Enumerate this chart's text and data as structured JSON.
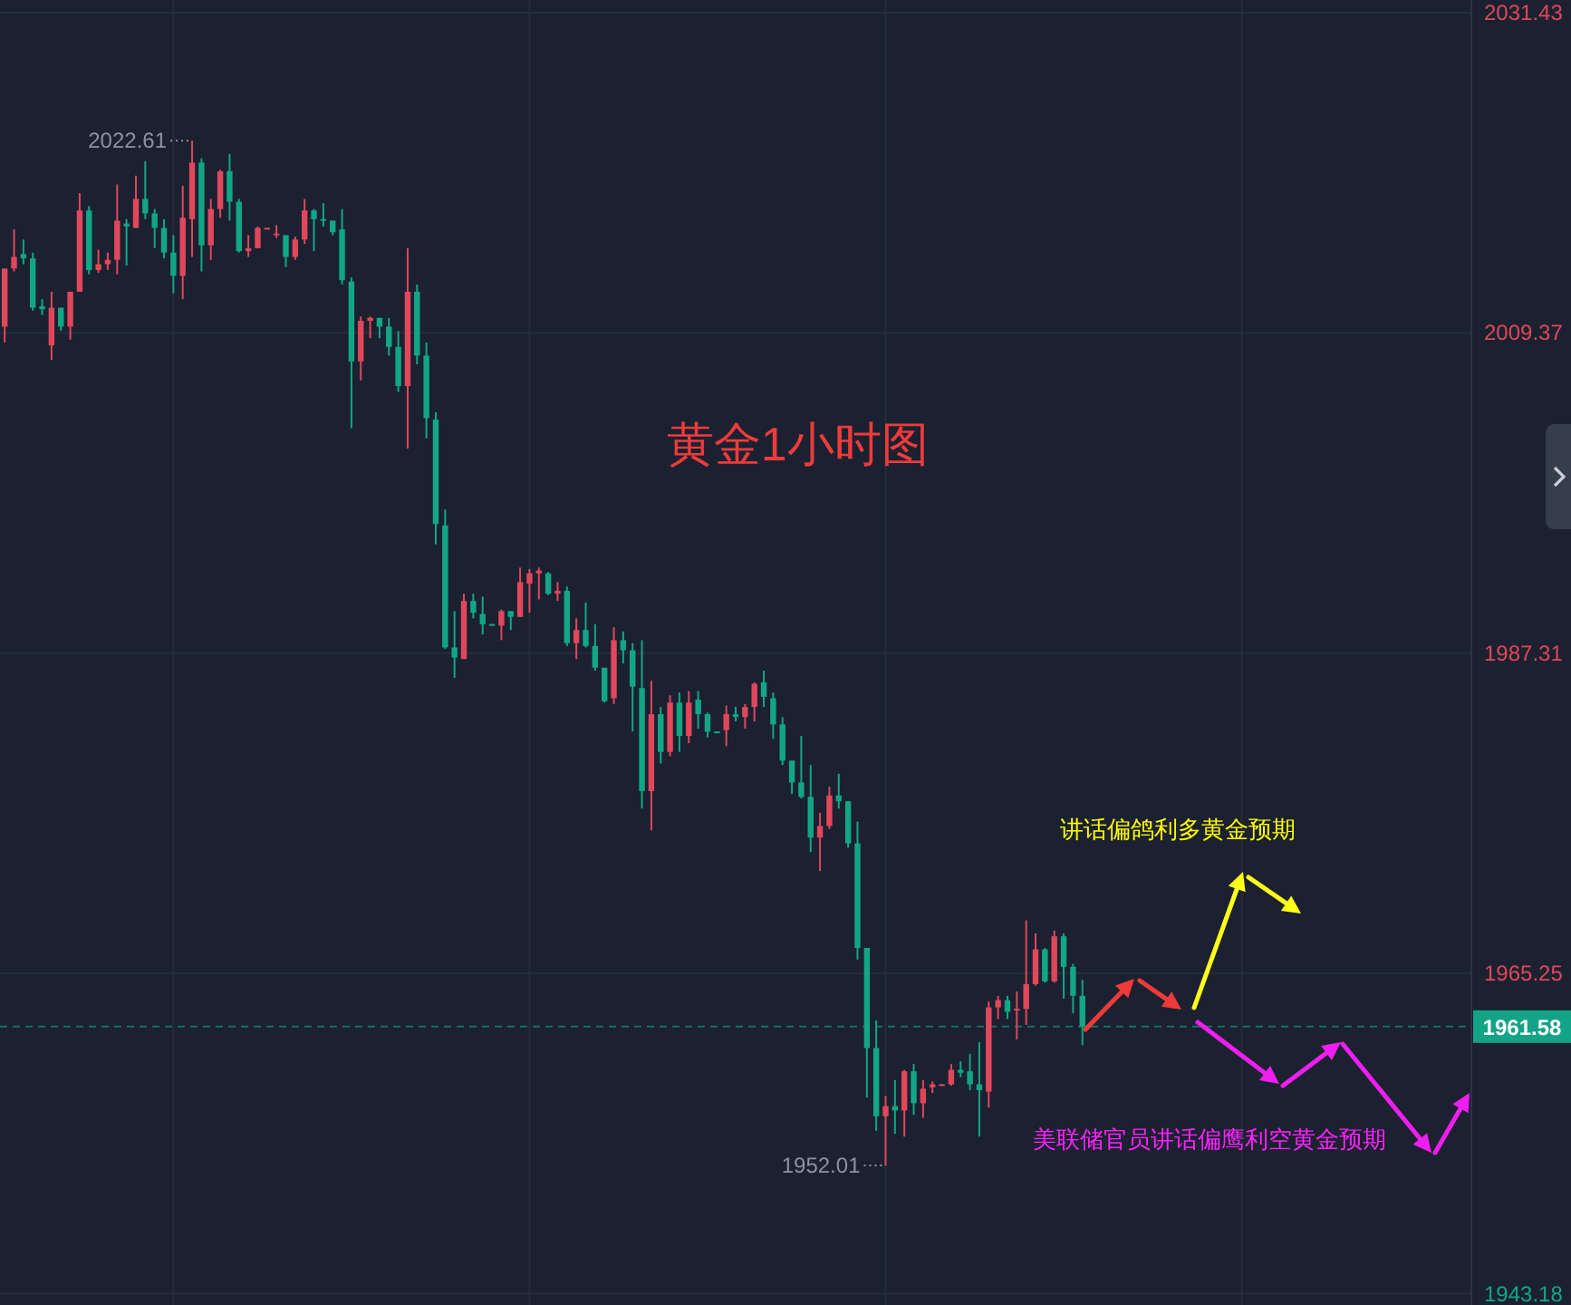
{
  "chart_data": {
    "type": "candlestick",
    "title": "黄金1小时图",
    "categories": [
      null,
      null,
      null,
      null,
      null,
      null,
      null,
      null,
      null,
      null,
      null,
      null,
      null,
      null,
      null,
      null,
      null,
      null,
      null,
      null,
      null,
      null,
      null,
      null,
      null,
      null,
      null,
      null,
      null,
      null,
      null,
      null,
      null,
      null,
      null,
      null,
      null,
      null,
      null,
      null,
      null,
      null,
      null,
      null,
      null,
      null,
      null,
      null,
      null,
      null,
      null,
      null,
      null,
      null,
      null,
      null,
      null,
      null,
      null,
      null,
      null,
      null,
      null,
      null,
      null,
      null,
      null,
      null,
      null,
      null,
      null,
      null,
      null,
      null,
      null,
      null,
      null,
      null,
      null,
      null,
      null,
      null,
      null,
      null,
      null,
      null,
      null,
      null,
      null,
      null,
      null,
      null,
      null,
      null,
      null,
      null,
      null,
      null,
      null,
      null,
      null,
      null,
      null,
      null,
      null,
      null,
      null,
      null,
      null,
      null,
      null,
      null,
      null,
      null,
      null,
      null,
      null,
      null,
      null,
      null,
      null,
      null,
      null,
      null,
      null,
      null,
      null,
      null,
      null,
      null,
      null,
      null,
      null,
      null,
      null,
      null,
      null,
      null,
      null,
      null,
      null,
      null,
      null,
      null,
      null,
      null,
      null,
      null,
      null,
      null,
      null,
      null,
      null,
      null,
      null,
      null,
      null
    ],
    "ohlc": [
      [
        2009.8,
        2013.8,
        2008.7,
        2013.8
      ],
      [
        2013.8,
        2016.5,
        2013.6,
        2014.6
      ],
      [
        2014.8,
        2015.8,
        2014.1,
        2014.5
      ],
      [
        2014.5,
        2014.9,
        2010.9,
        2011.1
      ],
      [
        2011.2,
        2011.7,
        2010.6,
        2011.0
      ],
      [
        2008.5,
        2012.2,
        2007.5,
        2011.1
      ],
      [
        2011.1,
        2011.1,
        2009.5,
        2009.8
      ],
      [
        2009.8,
        2012.2,
        2008.9,
        2012.2
      ],
      [
        2012.2,
        2019.0,
        2012.2,
        2017.8
      ],
      [
        2017.8,
        2018.1,
        2013.4,
        2013.7
      ],
      [
        2013.7,
        2015.1,
        2013.5,
        2014.1
      ],
      [
        2014.1,
        2014.9,
        2013.7,
        2014.4
      ],
      [
        2014.4,
        2019.6,
        2013.4,
        2017.1
      ],
      [
        2016.9,
        2017.2,
        2014.0,
        2016.7
      ],
      [
        2016.6,
        2020.2,
        2016.6,
        2018.6
      ],
      [
        2018.6,
        2021.2,
        2017.2,
        2017.6
      ],
      [
        2017.6,
        2017.9,
        2015.2,
        2016.6
      ],
      [
        2016.6,
        2017.2,
        2014.5,
        2014.9
      ],
      [
        2014.9,
        2016.1,
        2012.1,
        2013.3
      ],
      [
        2013.3,
        2019.5,
        2011.7,
        2017.3
      ],
      [
        2017.2,
        2022.61,
        2014.6,
        2021.1
      ],
      [
        2021.1,
        2021.4,
        2013.6,
        2015.4
      ],
      [
        2015.4,
        2018.6,
        2014.4,
        2017.9
      ],
      [
        2017.9,
        2020.6,
        2017.3,
        2020.5
      ],
      [
        2020.5,
        2021.7,
        2017.1,
        2018.4
      ],
      [
        2018.4,
        2018.6,
        2014.9,
        2015.0
      ],
      [
        2015.0,
        2016.1,
        2014.6,
        2015.2
      ],
      [
        2015.2,
        2016.7,
        2015.2,
        2016.6
      ],
      [
        2016.5,
        2016.6,
        2016.5,
        2016.6
      ],
      [
        2016.1,
        2016.8,
        2015.9,
        2016.2
      ],
      [
        2016.1,
        2016.1,
        2013.9,
        2014.6
      ],
      [
        2014.6,
        2016.0,
        2014.4,
        2015.8
      ],
      [
        2015.8,
        2018.6,
        2015.5,
        2017.8
      ],
      [
        2017.8,
        2017.9,
        2015.0,
        2017.2
      ],
      [
        2017.2,
        2018.3,
        2016.7,
        2017.1
      ],
      [
        2017.1,
        2017.1,
        2016.1,
        2016.3
      ],
      [
        2016.5,
        2017.9,
        2012.7,
        2013.0
      ],
      [
        2012.9,
        2013.2,
        2002.8,
        2007.4
      ],
      [
        2007.4,
        2010.5,
        2006.1,
        2010.2
      ],
      [
        2010.2,
        2010.5,
        2009.0,
        2010.4
      ],
      [
        2010.4,
        2010.4,
        2009.0,
        2009.8
      ],
      [
        2009.8,
        2010.4,
        2007.8,
        2008.4
      ],
      [
        2008.4,
        2009.5,
        2005.3,
        2005.7
      ],
      [
        2005.7,
        2015.2,
        2001.4,
        2012.2
      ],
      [
        2012.2,
        2012.7,
        2007.2,
        2007.8
      ],
      [
        2007.8,
        2008.7,
        2002.1,
        2003.5
      ],
      [
        2003.4,
        2003.9,
        1994.8,
        1996.2
      ],
      [
        1996.1,
        1997.2,
        1987.6,
        1987.7
      ],
      [
        1987.7,
        1990.2,
        1985.6,
        1987.0
      ],
      [
        1986.9,
        1991.4,
        1986.9,
        1990.9
      ],
      [
        1990.9,
        1991.4,
        1989.7,
        1990.1
      ],
      [
        1990.0,
        1991.2,
        1988.6,
        1989.3
      ],
      [
        1989.3,
        1989.3,
        1989.2,
        1989.2
      ],
      [
        1989.2,
        1990.3,
        1988.2,
        1990.2
      ],
      [
        1990.2,
        1990.2,
        1988.9,
        1989.8
      ],
      [
        1989.8,
        1993.2,
        1989.8,
        1992.2
      ],
      [
        1992.1,
        1993.1,
        1990.1,
        1992.8
      ],
      [
        1992.8,
        1993.2,
        1991.0,
        1993.0
      ],
      [
        1992.8,
        1992.9,
        1991.3,
        1991.4
      ],
      [
        1991.4,
        1992.2,
        1990.9,
        1991.6
      ],
      [
        1991.6,
        1991.9,
        1987.8,
        1988.0
      ],
      [
        1988.0,
        1989.7,
        1986.9,
        1988.9
      ],
      [
        1988.9,
        1990.8,
        1987.7,
        1987.8
      ],
      [
        1987.8,
        1989.3,
        1986.1,
        1986.3
      ],
      [
        1986.3,
        1986.3,
        1983.9,
        1984.0
      ],
      [
        1984.2,
        1989.1,
        1983.8,
        1988.2
      ],
      [
        1988.2,
        1988.8,
        1986.6,
        1987.5
      ],
      [
        1987.5,
        1988.0,
        1981.9,
        1985.0
      ],
      [
        1984.9,
        1988.2,
        1976.6,
        1977.8
      ],
      [
        1977.8,
        1985.4,
        1975.1,
        1983.1
      ],
      [
        1983.1,
        1983.6,
        1979.7,
        1980.5
      ],
      [
        1980.5,
        1984.4,
        1980.2,
        1983.9
      ],
      [
        1983.9,
        1984.6,
        1980.5,
        1981.6
      ],
      [
        1981.6,
        1984.7,
        1981.1,
        1983.9
      ],
      [
        1984.1,
        1984.7,
        1982.1,
        1983.1
      ],
      [
        1983.1,
        1983.2,
        1981.5,
        1981.9
      ],
      [
        1981.9,
        1981.9,
        1981.8,
        1981.8
      ],
      [
        1982.0,
        1983.7,
        1980.9,
        1983.1
      ],
      [
        1983.1,
        1983.6,
        1982.6,
        1982.9
      ],
      [
        1982.9,
        1983.8,
        1982.1,
        1983.6
      ],
      [
        1983.6,
        1985.3,
        1982.6,
        1985.2
      ],
      [
        1985.3,
        1986.1,
        1983.6,
        1984.3
      ],
      [
        1984.2,
        1984.6,
        1981.4,
        1982.4
      ],
      [
        1982.4,
        1982.9,
        1979.6,
        1979.9
      ],
      [
        1979.9,
        1979.9,
        1977.6,
        1978.4
      ],
      [
        1978.4,
        1981.6,
        1977.3,
        1977.4
      ],
      [
        1977.4,
        1979.6,
        1973.6,
        1974.6
      ],
      [
        1974.6,
        1976.3,
        1972.3,
        1975.4
      ],
      [
        1975.4,
        1978.1,
        1975.2,
        1977.5
      ],
      [
        1977.5,
        1979.0,
        1976.6,
        1977.1
      ],
      [
        1977.1,
        1977.1,
        1973.9,
        1974.2
      ],
      [
        1974.2,
        1975.7,
        1966.2,
        1967.0
      ],
      [
        1967.0,
        1967.0,
        1956.7,
        1960.1
      ],
      [
        1960.1,
        1962.0,
        1954.4,
        1955.4
      ],
      [
        1955.4,
        1956.8,
        1952.01,
        1956.1
      ],
      [
        1956.1,
        1957.9,
        1954.2,
        1955.8
      ],
      [
        1955.8,
        1958.6,
        1954.0,
        1958.5
      ],
      [
        1958.5,
        1959.0,
        1955.5,
        1956.3
      ],
      [
        1956.3,
        1957.9,
        1955.3,
        1957.3
      ],
      [
        1957.4,
        1957.8,
        1957.0,
        1957.6
      ],
      [
        1957.5,
        1957.6,
        1957.5,
        1957.6
      ],
      [
        1957.6,
        1959.0,
        1957.5,
        1958.6
      ],
      [
        1958.6,
        1959.2,
        1958.1,
        1958.4
      ],
      [
        1958.5,
        1959.7,
        1957.2,
        1957.6
      ],
      [
        1957.6,
        1960.5,
        1954.0,
        1957.2
      ],
      [
        1957.1,
        1963.3,
        1956.0,
        1962.9
      ],
      [
        1962.9,
        1963.7,
        1962.1,
        1963.4
      ],
      [
        1963.4,
        1963.7,
        1962.1,
        1962.6
      ],
      [
        1962.7,
        1964.0,
        1960.7,
        1962.8
      ],
      [
        1962.8,
        1968.9,
        1961.7,
        1964.5
      ],
      [
        1964.5,
        1968.0,
        1964.4,
        1966.9
      ],
      [
        1966.9,
        1967.0,
        1964.6,
        1964.7
      ],
      [
        1964.7,
        1968.2,
        1964.6,
        1967.8
      ],
      [
        1967.8,
        1968.0,
        1963.5,
        1965.7
      ],
      [
        1965.7,
        1965.9,
        1962.5,
        1963.7
      ],
      [
        1963.7,
        1964.8,
        1960.3,
        1961.58
      ],
      null,
      null,
      null,
      null,
      null,
      null,
      null,
      null,
      null,
      null,
      null,
      null,
      null,
      null,
      null,
      null,
      null,
      null,
      null,
      null,
      null,
      null,
      null,
      null,
      null,
      null,
      null,
      null,
      null,
      null,
      null,
      null,
      null,
      null,
      null,
      null,
      null,
      null,
      null,
      null,
      null
    ],
    "colors": [
      "#e0475b",
      "#e0475b",
      "#12a687",
      "#12a687",
      "#12a687",
      "#e0475b",
      "#12a687",
      "#e0475b",
      "#e0475b",
      "#12a687",
      "#e0475b",
      "#e0475b",
      "#e0475b",
      "#12a687",
      "#e0475b",
      "#12a687",
      "#12a687",
      "#12a687",
      "#12a687",
      "#e0475b",
      "#e0475b",
      "#12a687",
      "#e0475b",
      "#e0475b",
      "#12a687",
      "#12a687",
      "#e0475b",
      "#e0475b",
      "#e0475b",
      "#e0475b",
      "#12a687",
      "#e0475b",
      "#e0475b",
      "#12a687",
      "#12a687",
      "#12a687",
      "#12a687",
      "#12a687",
      "#e0475b",
      "#e0475b",
      "#12a687",
      "#12a687",
      "#12a687",
      "#e0475b",
      "#12a687",
      "#12a687",
      "#12a687",
      "#12a687",
      "#12a687",
      "#e0475b",
      "#12a687",
      "#12a687",
      "#12a687",
      "#e0475b",
      "#12a687",
      "#e0475b",
      "#e0475b",
      "#e0475b",
      "#12a687",
      "#e0475b",
      "#12a687",
      "#e0475b",
      "#12a687",
      "#12a687",
      "#12a687",
      "#e0475b",
      "#12a687",
      "#12a687",
      "#12a687",
      "#e0475b",
      "#12a687",
      "#e0475b",
      "#12a687",
      "#e0475b",
      "#12a687",
      "#12a687",
      "#12a687",
      "#e0475b",
      "#12a687",
      "#e0475b",
      "#e0475b",
      "#12a687",
      "#12a687",
      "#12a687",
      "#12a687",
      "#12a687",
      "#12a687",
      "#e0475b",
      "#e0475b",
      "#12a687",
      "#12a687",
      "#12a687",
      "#12a687",
      "#12a687",
      "#e0475b",
      "#12a687",
      "#e0475b",
      "#12a687",
      "#e0475b",
      "#e0475b",
      "#e0475b",
      "#e0475b",
      "#12a687",
      "#12a687",
      "#12a687",
      "#e0475b",
      "#e0475b",
      "#12a687",
      "#e0475b",
      "#e0475b",
      "#e0475b",
      "#12a687",
      "#e0475b",
      "#12a687",
      "#12a687",
      "#12a687",
      null,
      null,
      null,
      null,
      null,
      null,
      null,
      null,
      null,
      null,
      null,
      null,
      null,
      null,
      null,
      null,
      null,
      null,
      null,
      null,
      null,
      null,
      null,
      null,
      null,
      null,
      null,
      null,
      null,
      null,
      null,
      null,
      null,
      null,
      null,
      null,
      null,
      null,
      null,
      null,
      null
    ],
    "ylim": [
      1942.4,
      2032.3
    ],
    "yticks": [
      1943.18,
      1965.25,
      1987.31,
      2009.37,
      2031.43
    ],
    "grid": true,
    "tick_labels": "y",
    "ref_lines": [
      {
        "axis": "y",
        "value": 1961.58,
        "label": "1961.58",
        "color": "#13a386",
        "line_style": "dashed"
      }
    ],
    "annotations": [
      "2022.61",
      "1952.01",
      "讲话偏鸽利多黄金预期",
      "美联储官员讲话偏鹰利空黄金预期"
    ]
  }
}
